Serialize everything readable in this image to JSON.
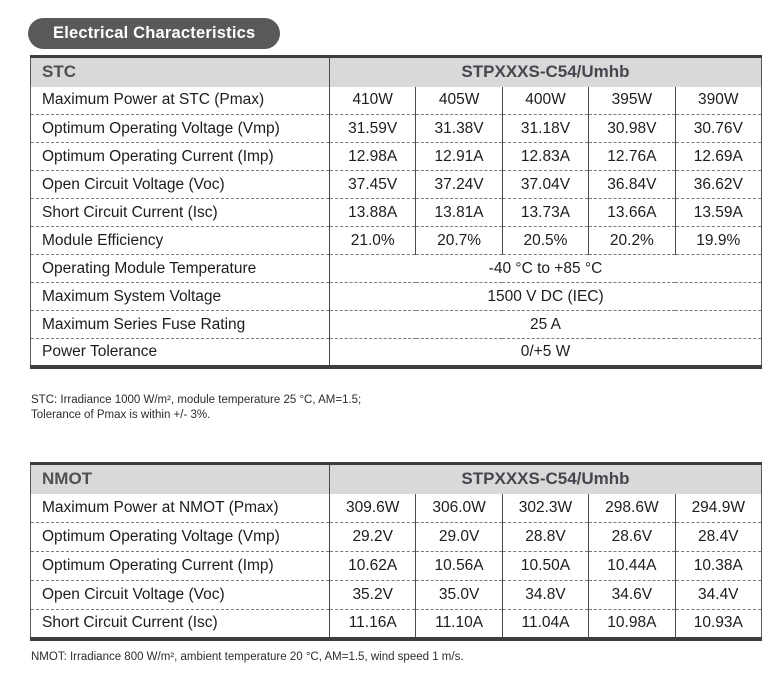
{
  "section_title": "Electrical Characteristics",
  "colors": {
    "pill_bg": "#58595b",
    "header_band_bg": "#d9d9d9",
    "heavy_border": "#3e3e40",
    "header_text": "#4f5052"
  },
  "stc": {
    "header_label": "STC",
    "model": "STPXXXS-C54/Umhb",
    "rows": [
      {
        "label": "Maximum Power at STC (Pmax)",
        "values": [
          "410W",
          "405W",
          "400W",
          "395W",
          "390W"
        ]
      },
      {
        "label": "Optimum Operating Voltage (Vmp)",
        "values": [
          "31.59V",
          "31.38V",
          "31.18V",
          "30.98V",
          "30.76V"
        ]
      },
      {
        "label": "Optimum Operating Current (Imp)",
        "values": [
          "12.98A",
          "12.91A",
          "12.83A",
          "12.76A",
          "12.69A"
        ]
      },
      {
        "label": "Open Circuit Voltage (Voc)",
        "values": [
          "37.45V",
          "37.24V",
          "37.04V",
          "36.84V",
          "36.62V"
        ]
      },
      {
        "label": "Short Circuit Current (Isc)",
        "values": [
          "13.88A",
          "13.81A",
          "13.73A",
          "13.66A",
          "13.59A"
        ]
      },
      {
        "label": "Module Efficiency",
        "values": [
          "21.0%",
          "20.7%",
          "20.5%",
          "20.2%",
          "19.9%"
        ]
      }
    ],
    "merged": [
      {
        "label": "Operating Module Temperature",
        "value": "-40 °C to +85 °C"
      },
      {
        "label": "Maximum System Voltage",
        "value": "1500 V DC (IEC)"
      },
      {
        "label": "Maximum Series Fuse Rating",
        "value": "25 A"
      },
      {
        "label": "Power Tolerance",
        "value": "0/+5 W"
      }
    ],
    "footnotes": [
      "STC: Irradiance 1000 W/m², module temperature 25 °C, AM=1.5;",
      "Tolerance of Pmax is within +/- 3%."
    ]
  },
  "nmot": {
    "header_label": "NMOT",
    "model": "STPXXXS-C54/Umhb",
    "rows": [
      {
        "label": "Maximum Power at NMOT (Pmax)",
        "values": [
          "309.6W",
          "306.0W",
          "302.3W",
          "298.6W",
          "294.9W"
        ]
      },
      {
        "label": "Optimum Operating Voltage (Vmp)",
        "values": [
          "29.2V",
          "29.0V",
          "28.8V",
          "28.6V",
          "28.4V"
        ]
      },
      {
        "label": "Optimum Operating Current (Imp)",
        "values": [
          "10.62A",
          "10.56A",
          "10.50A",
          "10.44A",
          "10.38A"
        ]
      },
      {
        "label": "Open Circuit Voltage (Voc)",
        "values": [
          "35.2V",
          "35.0V",
          "34.8V",
          "34.6V",
          "34.4V"
        ]
      },
      {
        "label": "Short Circuit Current (Isc)",
        "values": [
          "11.16A",
          "11.10A",
          "11.04A",
          "10.98A",
          "10.93A"
        ]
      }
    ],
    "footnotes": [
      "NMOT: Irradiance 800 W/m², ambient temperature 20 °C, AM=1.5, wind speed 1 m/s."
    ]
  }
}
